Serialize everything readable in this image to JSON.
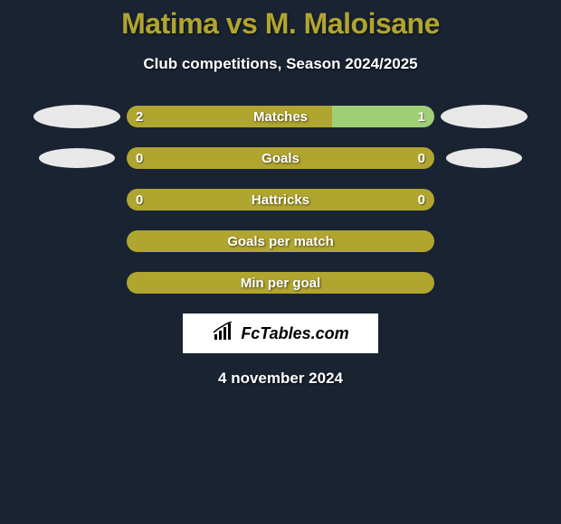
{
  "title": "Matima vs M. Maloisane",
  "subtitle": "Club competitions, Season 2024/2025",
  "colors": {
    "primary": "#b0a52f",
    "secondary": "#9fcf74",
    "background": "#1a2332",
    "ellipse": "#e8e8e8"
  },
  "rows": [
    {
      "label": "Matches",
      "left_value": "2",
      "right_value": "1",
      "left_color": "#b0a52f",
      "right_color": "#9fcf74",
      "left_pct": 66.7,
      "right_pct": 33.3,
      "show_left_ellipse": true,
      "show_right_ellipse": true,
      "ellipse_size": "large"
    },
    {
      "label": "Goals",
      "left_value": "0",
      "right_value": "0",
      "left_color": "#b0a52f",
      "right_color": "#b0a52f",
      "left_pct": 50,
      "right_pct": 50,
      "show_left_ellipse": true,
      "show_right_ellipse": true,
      "ellipse_size": "small"
    },
    {
      "label": "Hattricks",
      "left_value": "0",
      "right_value": "0",
      "left_color": "#b0a52f",
      "right_color": "#b0a52f",
      "left_pct": 50,
      "right_pct": 50,
      "show_left_ellipse": false,
      "show_right_ellipse": false
    }
  ],
  "single_bars": [
    {
      "label": "Goals per match",
      "color": "#b0a52f"
    },
    {
      "label": "Min per goal",
      "color": "#b0a52f"
    }
  ],
  "logo_text": "FcTables.com",
  "date": "4 november 2024"
}
